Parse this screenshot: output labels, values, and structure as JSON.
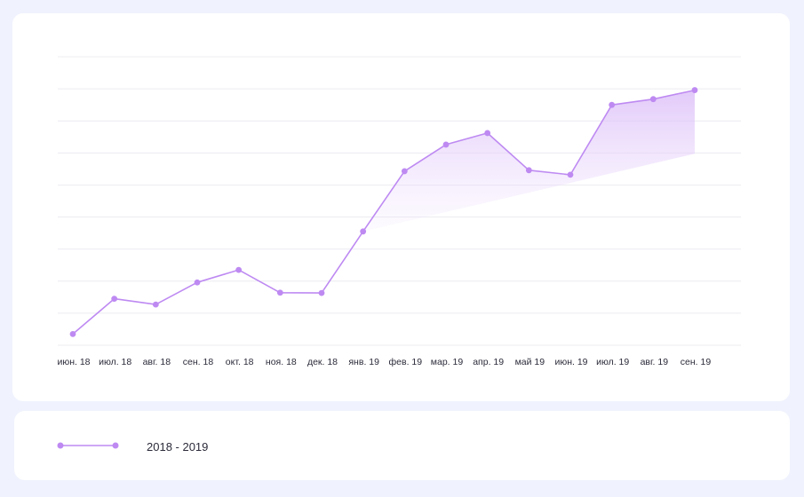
{
  "chart_data": {
    "type": "area",
    "categories": [
      "июн. 18",
      "июл. 18",
      "авг. 18",
      "сен. 18",
      "окт. 18",
      "ноя. 18",
      "дек. 18",
      "янв. 19",
      "фев. 19",
      "мар. 19",
      "апр. 19",
      "май 19",
      "июн. 19",
      "июл. 19",
      "авг. 19",
      "сен. 19"
    ],
    "series": [
      {
        "name": "2018 - 2019",
        "values": [
          3.5,
          14.5,
          12.7,
          19.6,
          23.5,
          16.4,
          16.3,
          35.5,
          54.3,
          62.6,
          66.2,
          54.6,
          53.2,
          75.0,
          76.8,
          79.6
        ]
      }
    ],
    "ylim": [
      0,
      90
    ],
    "grid": true,
    "legend": "bottom",
    "colors": {
      "line": "#be8af2",
      "fill": "#e7d3fb",
      "grid": "#ececf2"
    }
  }
}
